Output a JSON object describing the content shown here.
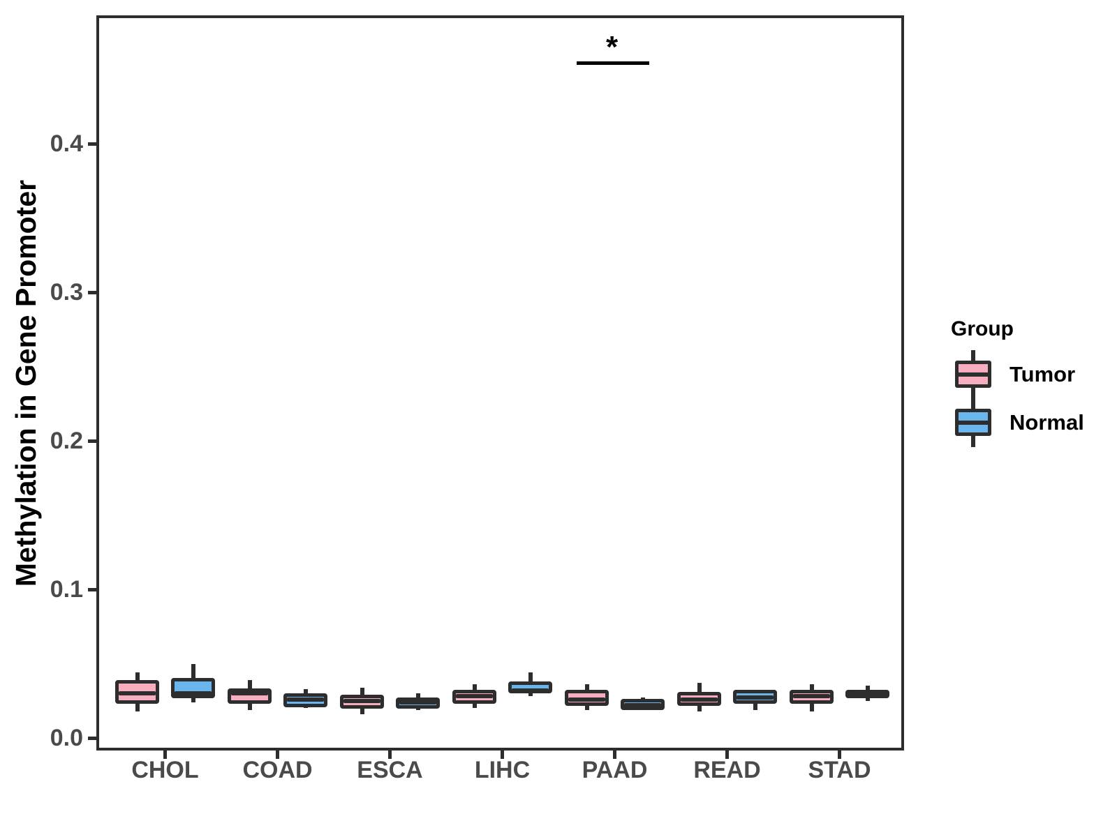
{
  "figure": {
    "background": "#ffffff",
    "legend": {
      "title": "Group",
      "items": [
        {
          "label": "Tumor",
          "color": "#F9AEC0"
        },
        {
          "label": "Normal",
          "color": "#69B6EF"
        }
      ]
    }
  },
  "chart_data": {
    "type": "boxplot",
    "title": "",
    "xlabel": "",
    "ylabel": "Methylation in Gene Promoter",
    "categories": [
      "CHOL",
      "COAD",
      "ESCA",
      "LIHC",
      "PAAD",
      "READ",
      "STAD"
    ],
    "groups": [
      "Tumor",
      "Normal"
    ],
    "yticks": [
      0.0,
      0.1,
      0.2,
      0.3,
      0.4
    ],
    "ytick_labels": [
      "0.0",
      "0.1",
      "0.2",
      "0.3",
      "0.4"
    ],
    "ylim": [
      0,
      0.47
    ],
    "grid": false,
    "legend_position": "right",
    "colors": {
      "tumor_fill": "#F9AEC0",
      "normal_fill": "#69B6EF",
      "box_border": "#2d2d2d",
      "tick_label": "#4a4a4a",
      "axis_title": "#000000",
      "annotation": "#000000"
    },
    "series": [
      {
        "name": "Tumor",
        "fill": "#F9AEC0",
        "boxes": [
          {
            "category": "CHOL",
            "whisker_low": 0.018,
            "q1": 0.024,
            "median": 0.03,
            "q3": 0.038,
            "whisker_high": 0.044
          },
          {
            "category": "COAD",
            "whisker_low": 0.019,
            "q1": 0.024,
            "median": 0.03,
            "q3": 0.032,
            "whisker_high": 0.039
          },
          {
            "category": "ESCA",
            "whisker_low": 0.016,
            "q1": 0.021,
            "median": 0.025,
            "q3": 0.028,
            "whisker_high": 0.034
          },
          {
            "category": "LIHC",
            "whisker_low": 0.02,
            "q1": 0.024,
            "median": 0.028,
            "q3": 0.031,
            "whisker_high": 0.036
          },
          {
            "category": "PAAD",
            "whisker_low": 0.019,
            "q1": 0.023,
            "median": 0.026,
            "q3": 0.031,
            "whisker_high": 0.036
          },
          {
            "category": "READ",
            "whisker_low": 0.018,
            "q1": 0.023,
            "median": 0.026,
            "q3": 0.03,
            "whisker_high": 0.037
          },
          {
            "category": "STAD",
            "whisker_low": 0.018,
            "q1": 0.024,
            "median": 0.028,
            "q3": 0.031,
            "whisker_high": 0.036
          }
        ]
      },
      {
        "name": "Normal",
        "fill": "#69B6EF",
        "boxes": [
          {
            "category": "CHOL",
            "whisker_low": 0.024,
            "q1": 0.028,
            "median": 0.03,
            "q3": 0.039,
            "whisker_high": 0.05
          },
          {
            "category": "COAD",
            "whisker_low": 0.02,
            "q1": 0.022,
            "median": 0.026,
            "q3": 0.029,
            "whisker_high": 0.033
          },
          {
            "category": "ESCA",
            "whisker_low": 0.019,
            "q1": 0.021,
            "median": 0.024,
            "q3": 0.026,
            "whisker_high": 0.03
          },
          {
            "category": "LIHC",
            "whisker_low": 0.028,
            "q1": 0.031,
            "median": 0.032,
            "q3": 0.037,
            "whisker_high": 0.044
          },
          {
            "category": "PAAD",
            "whisker_low": 0.019,
            "q1": 0.02,
            "median": 0.022,
            "q3": 0.025,
            "whisker_high": 0.027
          },
          {
            "category": "READ",
            "whisker_low": 0.019,
            "q1": 0.024,
            "median": 0.027,
            "q3": 0.031,
            "whisker_high": 0.032
          },
          {
            "category": "STAD",
            "whisker_low": 0.025,
            "q1": 0.028,
            "median": 0.03,
            "q3": 0.031,
            "whisker_high": 0.035
          }
        ]
      }
    ],
    "annotations": [
      {
        "type": "significance_bar",
        "category": "PAAD",
        "label": "*",
        "y_value": 0.454
      }
    ]
  }
}
